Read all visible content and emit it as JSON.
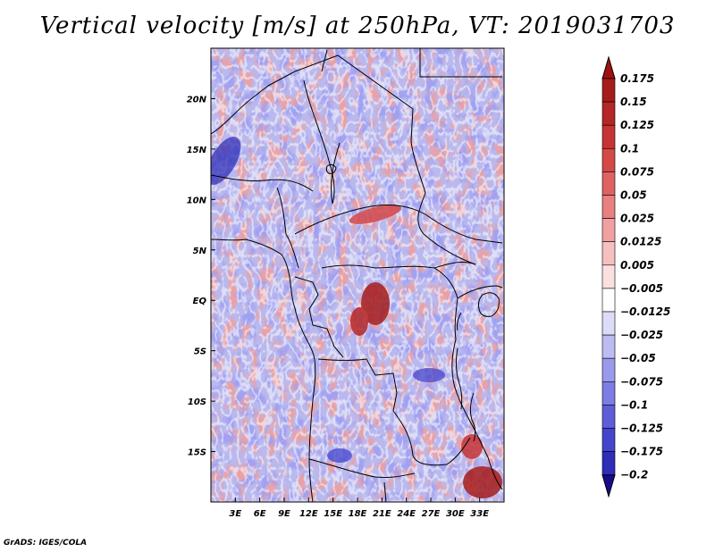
{
  "title": "Vertical velocity [m/s] at 250hPa, VT: 2019031703",
  "map": {
    "lon_range": [
      0,
      36
    ],
    "lat_range": [
      -20,
      25
    ],
    "lon_ticks": [
      {
        "value": 3,
        "label": "3E"
      },
      {
        "value": 6,
        "label": "6E"
      },
      {
        "value": 9,
        "label": "9E"
      },
      {
        "value": 12,
        "label": "12E"
      },
      {
        "value": 15,
        "label": "15E"
      },
      {
        "value": 18,
        "label": "18E"
      },
      {
        "value": 21,
        "label": "21E"
      },
      {
        "value": 24,
        "label": "24E"
      },
      {
        "value": 27,
        "label": "27E"
      },
      {
        "value": 30,
        "label": "30E"
      },
      {
        "value": 33,
        "label": "33E"
      }
    ],
    "lat_ticks": [
      {
        "value": 20,
        "label": "20N"
      },
      {
        "value": 15,
        "label": "15N"
      },
      {
        "value": 10,
        "label": "10N"
      },
      {
        "value": 5,
        "label": "5N"
      },
      {
        "value": 0,
        "label": "EQ"
      },
      {
        "value": -5,
        "label": "5S"
      },
      {
        "value": -10,
        "label": "10S"
      },
      {
        "value": -15,
        "label": "15S"
      }
    ]
  },
  "colorbar": {
    "levels": [
      {
        "label": "0.175",
        "color": "#a51c1c"
      },
      {
        "label": "0.15",
        "color": "#b52626"
      },
      {
        "label": "0.125",
        "color": "#c53434"
      },
      {
        "label": "0.1",
        "color": "#d44848"
      },
      {
        "label": "0.075",
        "color": "#df6262"
      },
      {
        "label": "0.05",
        "color": "#e88080"
      },
      {
        "label": "0.025",
        "color": "#f0a0a0"
      },
      {
        "label": "0.0125",
        "color": "#f6c0c0"
      },
      {
        "label": "0.005",
        "color": "#fbe0e0"
      },
      {
        "label": "−0.005",
        "color": "#ffffff"
      },
      {
        "label": "−0.0125",
        "color": "#dcdcf8"
      },
      {
        "label": "−0.025",
        "color": "#bcbcf2"
      },
      {
        "label": "−0.05",
        "color": "#9a9aec"
      },
      {
        "label": "−0.075",
        "color": "#7c7ce4"
      },
      {
        "label": "−0.1",
        "color": "#5e5ed8"
      },
      {
        "label": "−0.125",
        "color": "#4444cc"
      },
      {
        "label": "−0.175",
        "color": "#2e2eb8"
      },
      {
        "label": "−0.2",
        "color": "#1e1ea0"
      }
    ],
    "top_color": "#a01010",
    "bottom_color": "#1a0a8c"
  },
  "credit": "GrADS: IGES/COLA"
}
